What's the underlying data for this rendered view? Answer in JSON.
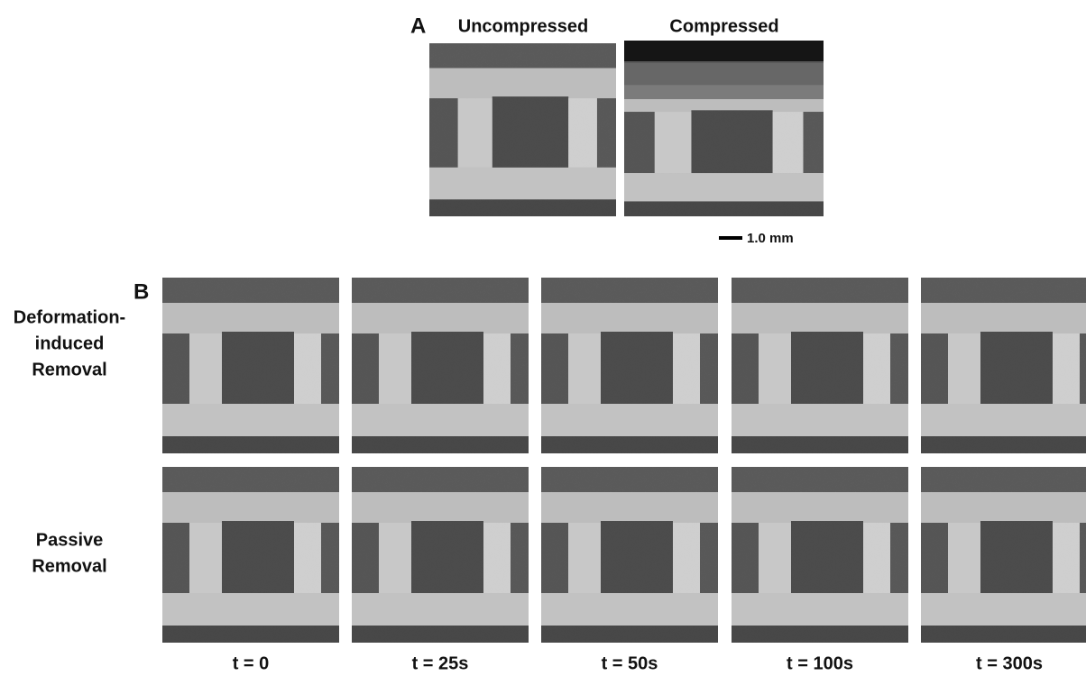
{
  "panel_a": {
    "label": "A",
    "titles": [
      "Uncompressed",
      "Compressed"
    ],
    "scale_bar": "1.0 mm"
  },
  "panel_b": {
    "label": "B",
    "rows": [
      {
        "label": [
          "Deformation-",
          "induced",
          "Removal"
        ]
      },
      {
        "label": [
          "Passive",
          "Removal"
        ]
      }
    ],
    "times": [
      "t = 0",
      "t = 25s",
      "t = 50s",
      "t = 100s",
      "t = 300s"
    ]
  }
}
